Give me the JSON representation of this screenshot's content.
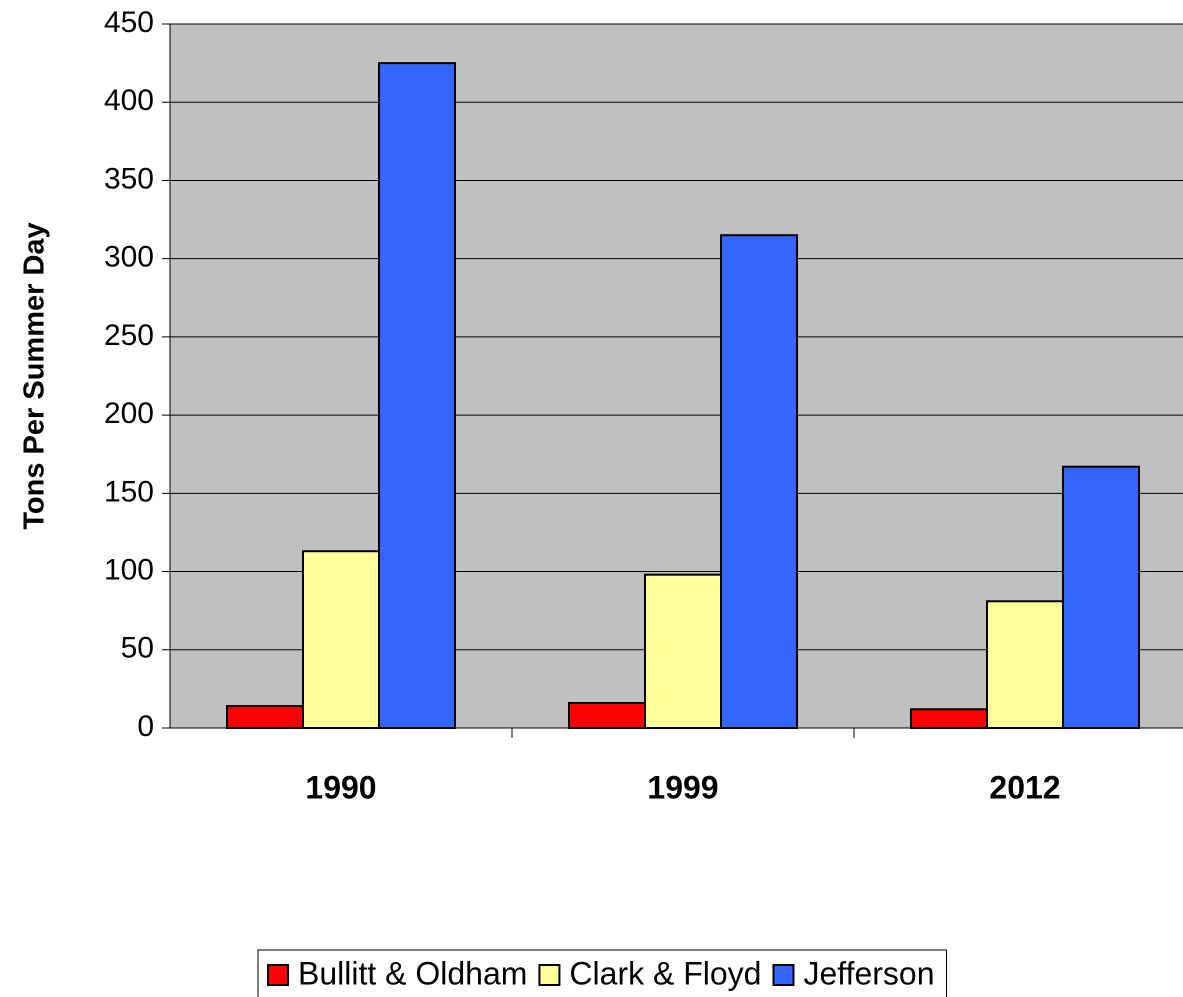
{
  "chart_data": {
    "type": "bar",
    "y_label": "Tons Per Summer Day",
    "categories": [
      "1990",
      "1999",
      "2012"
    ],
    "series": [
      {
        "name": "Bullitt & Oldham",
        "color": "#ff0000",
        "values": [
          14,
          16,
          12
        ]
      },
      {
        "name": "Clark & Floyd",
        "color": "#ffff99",
        "values": [
          113,
          98,
          81
        ]
      },
      {
        "name": "Jefferson",
        "color": "#3366ff",
        "values": [
          425,
          315,
          167
        ]
      }
    ],
    "ylim": [
      0,
      450
    ],
    "yticks": [
      0,
      50,
      100,
      150,
      200,
      250,
      300,
      350,
      400,
      450
    ],
    "grid": true,
    "plot_background": "#c0c0c0",
    "legend": "bottom"
  }
}
